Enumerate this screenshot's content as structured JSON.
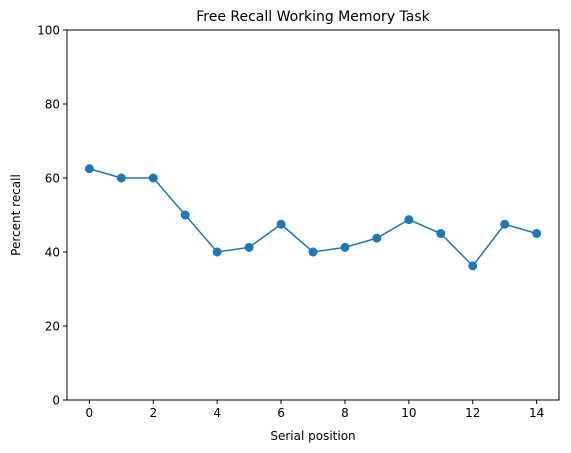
{
  "chart_data": {
    "type": "line",
    "title": "Free Recall Working Memory Task",
    "xlabel": "Serial position",
    "ylabel": "Percent recall",
    "x": [
      0,
      1,
      2,
      3,
      4,
      5,
      6,
      7,
      8,
      9,
      10,
      11,
      12,
      13,
      14
    ],
    "series": [
      {
        "values": [
          62.5,
          60.0,
          60.0,
          50.0,
          40.0,
          41.25,
          47.5,
          40.0,
          41.25,
          43.75,
          48.75,
          45.0,
          36.25,
          47.5,
          45.0
        ],
        "color": "#1f77b4",
        "marker": "circle"
      }
    ],
    "xlim": [
      -0.7,
      14.7
    ],
    "ylim": [
      0,
      100
    ],
    "xticks": [
      "0",
      "2",
      "4",
      "6",
      "8",
      "10",
      "12",
      "14"
    ],
    "yticks": [
      "0",
      "20",
      "40",
      "60",
      "80",
      "100"
    ],
    "grid": false
  }
}
